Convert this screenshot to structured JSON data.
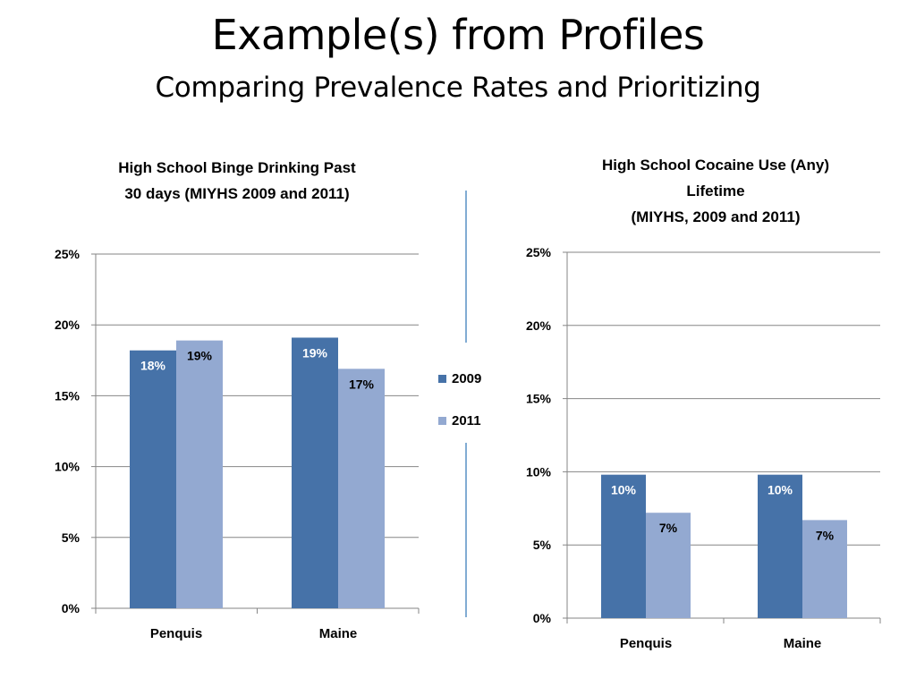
{
  "slide": {
    "title": "Example(s) from Profiles",
    "subtitle": "Comparing Prevalence Rates and Prioritizing"
  },
  "colors": {
    "series_2009": "#4672A8",
    "series_2011": "#93A9D1",
    "divider": "#2E75B6",
    "grid": "#868686"
  },
  "legend": {
    "items": [
      "2009",
      "2011"
    ]
  },
  "chart_data": [
    {
      "type": "bar",
      "title_lines": [
        "High School Binge Drinking  Past",
        "30 days (MIYHS 2009 and 2011)"
      ],
      "categories": [
        "Penquis",
        "Maine"
      ],
      "series": [
        {
          "name": "2009",
          "values": [
            18.2,
            19.1
          ],
          "labels": [
            "18%",
            "19%"
          ]
        },
        {
          "name": "2011",
          "values": [
            18.9,
            16.9
          ],
          "labels": [
            "19%",
            "17%"
          ]
        }
      ],
      "ylim": [
        0,
        25
      ],
      "yticks": [
        "0%",
        "5%",
        "10%",
        "15%",
        "20%",
        "25%"
      ],
      "grid": true,
      "legend": "right"
    },
    {
      "type": "bar",
      "title_lines": [
        "High School Cocaine Use (Any)",
        "Lifetime",
        "(MIYHS, 2009 and 2011)"
      ],
      "categories": [
        "Penquis",
        "Maine"
      ],
      "series": [
        {
          "name": "2009",
          "values": [
            9.8,
            9.8
          ],
          "labels": [
            "10%",
            "10%"
          ]
        },
        {
          "name": "2011",
          "values": [
            7.2,
            6.7
          ],
          "labels": [
            "7%",
            "7%"
          ]
        }
      ],
      "ylim": [
        0,
        25
      ],
      "yticks": [
        "0%",
        "5%",
        "10%",
        "15%",
        "20%",
        "25%"
      ],
      "grid": true
    }
  ]
}
